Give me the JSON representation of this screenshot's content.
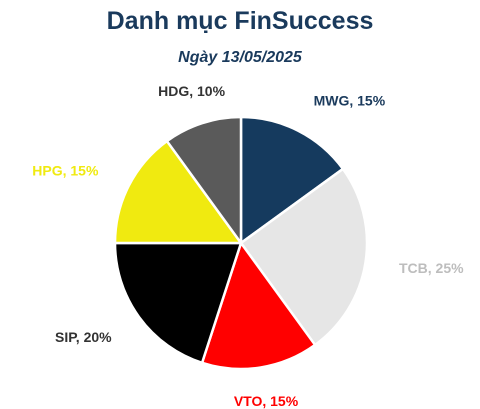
{
  "chart_data": {
    "type": "pie",
    "title": "Danh mục FinSuccess",
    "subtitle": "Ngày 13/05/2025",
    "slices": [
      {
        "name": "MWG",
        "value": 15,
        "label": "MWG, 15%",
        "color": "#153a5e",
        "label_color": "#1a3a5c"
      },
      {
        "name": "TCB",
        "value": 25,
        "label": "TCB, 25%",
        "color": "#e6e6e6",
        "label_color": "#bdbdbd"
      },
      {
        "name": "VTO",
        "value": 15,
        "label": "VTO, 15%",
        "color": "#ff0000",
        "label_color": "#ff0000"
      },
      {
        "name": "SIP",
        "value": 20,
        "label": "SIP, 20%",
        "color": "#000000",
        "label_color": "#333333"
      },
      {
        "name": "HPG",
        "value": 15,
        "label": "HPG, 15%",
        "color": "#f0ea10",
        "label_color": "#f0ea10"
      },
      {
        "name": "HDG",
        "value": 10,
        "label": "HDG, 10%",
        "color": "#5a5a5a",
        "label_color": "#333333"
      }
    ],
    "start": "top",
    "direction": "clockwise",
    "legend": "none",
    "labels": "outside"
  }
}
